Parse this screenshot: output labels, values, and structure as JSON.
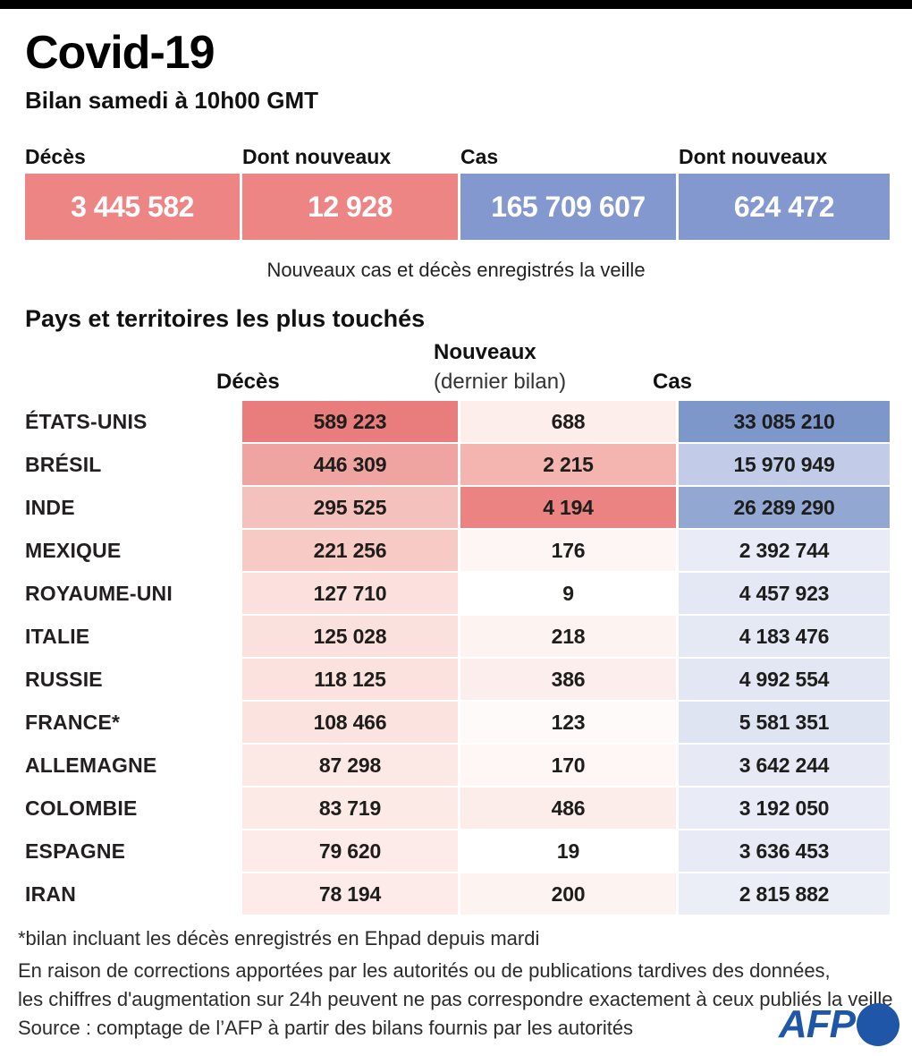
{
  "title": "Covid-19",
  "subtitle": "Bilan samedi à 10h00 GMT",
  "summary": {
    "items": [
      {
        "label": "Décès",
        "value": "3 445 582",
        "color": "#ee8585"
      },
      {
        "label": "Dont nouveaux",
        "value": "12 928",
        "color": "#ee8585"
      },
      {
        "label": "Cas",
        "value": "165 709 607",
        "color": "#8398ce"
      },
      {
        "label": "Dont nouveaux",
        "value": "624 472",
        "color": "#8398ce"
      }
    ],
    "caption": "Nouveaux cas et décès enregistrés la veille"
  },
  "table": {
    "section_title": "Pays et territoires les plus touchés",
    "headers": {
      "deaths": "Décès",
      "new_line1": "Nouveaux",
      "new_line2": "(dernier bilan)",
      "cases": "Cas"
    },
    "rows": [
      {
        "country": "ÉTATS-UNIS",
        "deaths": "589 223",
        "deaths_bg": "#e97c7c",
        "new": "688",
        "new_bg": "#fdeeec",
        "cases": "33 085 210",
        "cases_bg": "#7e97cb"
      },
      {
        "country": "BRÉSIL",
        "deaths": "446 309",
        "deaths_bg": "#f0a4a1",
        "new": "2 215",
        "new_bg": "#f4b5b1",
        "cases": "15 970 949",
        "cases_bg": "#c2cce8"
      },
      {
        "country": "INDE",
        "deaths": "295 525",
        "deaths_bg": "#f5c1bd",
        "new": "4 194",
        "new_bg": "#eb8382",
        "cases": "26 289 290",
        "cases_bg": "#93a7d3"
      },
      {
        "country": "MEXIQUE",
        "deaths": "221 256",
        "deaths_bg": "#f7cac6",
        "new": "176",
        "new_bg": "#fef6f5",
        "cases": "2 392 744",
        "cases_bg": "#e9ecf6"
      },
      {
        "country": "ROYAUME-UNI",
        "deaths": "127 710",
        "deaths_bg": "#fbe0dd",
        "new": "9",
        "new_bg": "#ffffff",
        "cases": "4 457 923",
        "cases_bg": "#e4e8f4"
      },
      {
        "country": "ITALIE",
        "deaths": "125 028",
        "deaths_bg": "#fbe1de",
        "new": "218",
        "new_bg": "#fdf4f2",
        "cases": "4 183 476",
        "cases_bg": "#e5e9f4"
      },
      {
        "country": "RUSSIE",
        "deaths": "118 125",
        "deaths_bg": "#fbe2df",
        "new": "386",
        "new_bg": "#fceeec",
        "cases": "4 992 554",
        "cases_bg": "#e2e7f3"
      },
      {
        "country": "FRANCE*",
        "deaths": "108 466",
        "deaths_bg": "#fbe3e0",
        "new": "123",
        "new_bg": "#fefafa",
        "cases": "5 581 351",
        "cases_bg": "#dfe4f2"
      },
      {
        "country": "ALLEMAGNE",
        "deaths": "87 298",
        "deaths_bg": "#fce9e6",
        "new": "170",
        "new_bg": "#fef7f6",
        "cases": "3 642 244",
        "cases_bg": "#e7eaf5"
      },
      {
        "country": "COLOMBIE",
        "deaths": "83 719",
        "deaths_bg": "#fceae7",
        "new": "486",
        "new_bg": "#fcedeb",
        "cases": "3 192 050",
        "cases_bg": "#e9ecf6"
      },
      {
        "country": "ESPAGNE",
        "deaths": "79 620",
        "deaths_bg": "#fcebe8",
        "new": "19",
        "new_bg": "#ffffff",
        "cases": "3 636 453",
        "cases_bg": "#e8ebf5"
      },
      {
        "country": "IRAN",
        "deaths": "78 194",
        "deaths_bg": "#fcebe9",
        "new": "200",
        "new_bg": "#fdf4f2",
        "cases": "2 815 882",
        "cases_bg": "#eceef7"
      }
    ]
  },
  "footer": {
    "footnote": "*bilan incluant les décès enregistrés en Ehpad depuis mardi",
    "note_line1": "En raison de corrections apportées par les autorités ou de publications tardives des données,",
    "note_line2": "les chiffres d'augmentation sur 24h peuvent ne pas correspondre exactement à ceux publiés la veille",
    "source": "Source : comptage de l’AFP à partir des bilans fournis par les autorités",
    "logo_text": "AFP",
    "logo_color": "#2056a8"
  },
  "chart_data": {
    "type": "table",
    "title": "Covid-19 — Bilan samedi à 10h00 GMT",
    "totals": {
      "deces": 3445582,
      "deces_nouveaux": 12928,
      "cas": 165709607,
      "cas_nouveaux": 624472
    },
    "columns": [
      "Pays",
      "Décès",
      "Nouveaux (dernier bilan)",
      "Cas"
    ],
    "rows": [
      [
        "ÉTATS-UNIS",
        589223,
        688,
        33085210
      ],
      [
        "BRÉSIL",
        446309,
        2215,
        15970949
      ],
      [
        "INDE",
        295525,
        4194,
        26289290
      ],
      [
        "MEXIQUE",
        221256,
        176,
        2392744
      ],
      [
        "ROYAUME-UNI",
        127710,
        9,
        4457923
      ],
      [
        "ITALIE",
        125028,
        218,
        4183476
      ],
      [
        "RUSSIE",
        118125,
        386,
        4992554
      ],
      [
        "FRANCE*",
        108466,
        123,
        5581351
      ],
      [
        "ALLEMAGNE",
        87298,
        170,
        3642244
      ],
      [
        "COLOMBIE",
        83719,
        486,
        3192050
      ],
      [
        "ESPAGNE",
        79620,
        19,
        3636453
      ],
      [
        "IRAN",
        78194,
        200,
        2815882
      ]
    ],
    "layout": {
      "heatmap": true,
      "deaths_color_max": "#e97c7c",
      "cases_color_max": "#7e97cb",
      "caption": "Nouveaux cas et décès enregistrés la veille"
    }
  }
}
